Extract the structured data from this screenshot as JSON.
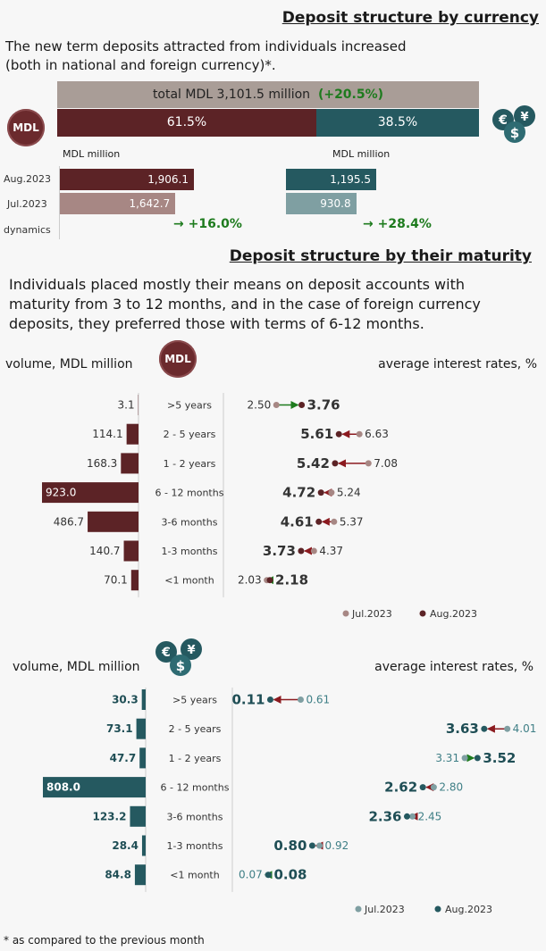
{
  "section1": {
    "title": "Deposit structure by currency",
    "intro": "The new term deposits attracted from individuals increased (both in national and foreign currency)*.",
    "total_label": "total MDL 3,101.5 million",
    "total_change": "(+20.5%)",
    "mdl_share": "61.5%",
    "fx_share": "38.5%",
    "mdl_icon": "MDL",
    "fx_icon": "currency-coins-icon",
    "mdl_unit": "MDL million",
    "fx_unit": "MDL million",
    "rows": [
      {
        "label": "Aug.2023",
        "mdl": "1,906.1",
        "fx": "1,195.5"
      },
      {
        "label": "Jul.2023",
        "mdl": "1,642.7",
        "fx": "930.8"
      }
    ],
    "dynamics_label": "dynamics",
    "mdl_dynamics": "+16.0%",
    "fx_dynamics": "+28.4%"
  },
  "section2": {
    "title": "Deposit structure by their maturity",
    "intro": "Individuals placed mostly their means on deposit accounts with maturity from 3 to 12 months, and in the case of foreign currency deposits, they preferred those with terms of 6-12 months.",
    "maturities": [
      ">5 years",
      "2 - 5 years",
      "1 - 2 years",
      "6 - 12 months",
      "3-6 months",
      "1-3 months",
      "<1 month"
    ]
  },
  "mdl_panel": {
    "volume_label": "volume, MDL million",
    "rates_label": "average interest rates, %",
    "icon": "MDL",
    "legend_jul": "Jul.2023",
    "legend_aug": "Aug.2023"
  },
  "fx_panel": {
    "volume_label": "volume, MDL million",
    "rates_label": "average interest rates, %",
    "legend_jul": "Jul.2023",
    "legend_aug": "Aug.2023"
  },
  "footnote": "* as compared to the previous month",
  "colors": {
    "mdl_dark": "#5c2326",
    "mdl_light": "#a78784",
    "fx_dark": "#255960",
    "fx_light": "#7f9fa2",
    "positive": "#1e7b1e",
    "arrow_red": "#8b1a1f"
  },
  "chart_data": [
    {
      "type": "bar",
      "title": "Deposit structure by currency",
      "categories": [
        "Aug.2023",
        "Jul.2023"
      ],
      "series": [
        {
          "name": "MDL",
          "values": [
            1906.1,
            1642.7
          ]
        },
        {
          "name": "foreign currency",
          "values": [
            1195.5,
            930.8
          ]
        }
      ],
      "ylabel": "MDL million"
    },
    {
      "type": "bar",
      "categories": [
        ">5 years",
        "2 - 5 years",
        "1 - 2 years",
        "6 - 12 months",
        "3-6 months",
        "1-3 months",
        "<1 month"
      ],
      "values": [
        3.1,
        114.1,
        168.3,
        923.0,
        486.7,
        140.7,
        70.1
      ],
      "ylabel": "volume, MDL million"
    },
    {
      "type": "scatter",
      "categories": [
        ">5 years",
        "2 - 5 years",
        "1 - 2 years",
        "6 - 12 months",
        "3-6 months",
        "1-3 months",
        "<1 month"
      ],
      "series": [
        {
          "name": "Jul.2023",
          "values": [
            2.5,
            6.63,
            7.08,
            5.24,
            5.37,
            4.37,
            2.03
          ]
        },
        {
          "name": "Aug.2023",
          "values": [
            3.76,
            5.61,
            5.42,
            4.72,
            4.61,
            3.73,
            2.18
          ]
        }
      ],
      "ylabel": "average interest rates, %"
    },
    {
      "type": "bar",
      "categories": [
        ">5 years",
        "2 - 5 years",
        "1 - 2 years",
        "6 - 12 months",
        "3-6 months",
        "1-3 months",
        "<1 month"
      ],
      "values": [
        30.3,
        73.1,
        47.7,
        808.0,
        123.2,
        28.4,
        84.8
      ],
      "ylabel": "volume, MDL million"
    },
    {
      "type": "scatter",
      "categories": [
        ">5 years",
        "2 - 5 years",
        "1 - 2 years",
        "6 - 12 months",
        "3-6 months",
        "1-3 months",
        "<1 month"
      ],
      "series": [
        {
          "name": "Jul.2023",
          "values": [
            0.61,
            4.01,
            3.31,
            2.8,
            2.45,
            0.92,
            0.07
          ]
        },
        {
          "name": "Aug.2023",
          "values": [
            0.11,
            3.63,
            3.52,
            2.62,
            2.36,
            0.8,
            0.08
          ]
        }
      ],
      "ylabel": "average interest rates, %"
    }
  ]
}
